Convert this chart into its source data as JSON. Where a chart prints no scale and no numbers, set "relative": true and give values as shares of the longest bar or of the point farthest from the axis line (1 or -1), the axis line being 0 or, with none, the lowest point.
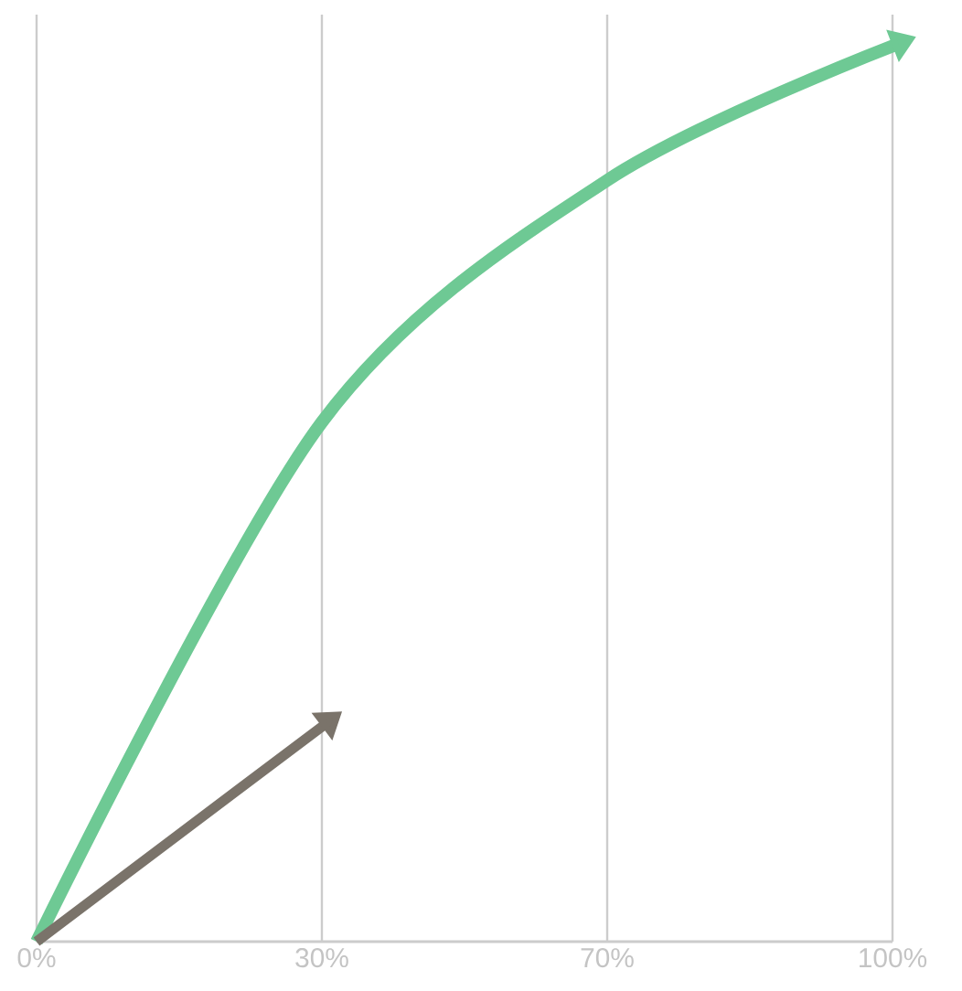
{
  "chart_data": {
    "type": "line",
    "relative": true,
    "categories": [
      "0%",
      "30%",
      "70%",
      "100%"
    ],
    "grid": "x",
    "series": [
      {
        "color": "#6ec994",
        "values": [
          0,
          0.58,
          0.85,
          1.0
        ]
      },
      {
        "color": "#7a736a",
        "values": [
          0,
          0.24,
          null,
          null
        ]
      }
    ]
  }
}
